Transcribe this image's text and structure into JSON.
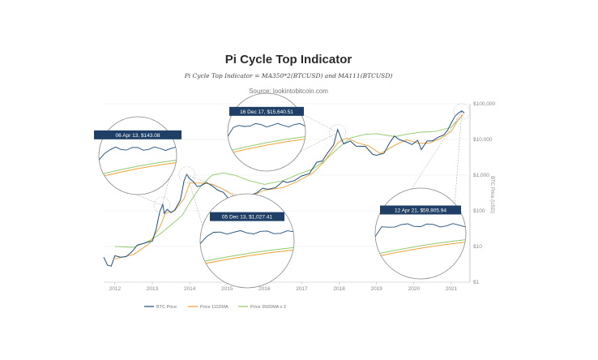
{
  "chart_data": {
    "type": "line",
    "title": "Pi Cycle Top Indicator",
    "subtitle": "Pi Cycle Top Indicator = MA350*2(BTCUSD) and MA111(BTCUSD)",
    "source": "Source: lookintobitcoin.com",
    "ylabel": "BTC Price (USD)",
    "y_scale": "log",
    "ylim": [
      1,
      100000
    ],
    "xlim": [
      2011.7,
      2021.5
    ],
    "x_ticks": [
      2012,
      2013,
      2014,
      2015,
      2016,
      2017,
      2018,
      2019,
      2020,
      2021
    ],
    "x_tick_labels": [
      "2012",
      "2013",
      "2014",
      "2015",
      "2016",
      "2017",
      "2018",
      "2019",
      "2020",
      "2021"
    ],
    "y_ticks": [
      1,
      10,
      100,
      1000,
      10000,
      100000
    ],
    "y_tick_labels": [
      "$1",
      "$10",
      "$100",
      "$1,000",
      "$10,000",
      "$100,000"
    ],
    "legend": {
      "position": "bottom"
    },
    "grid": true,
    "series": [
      {
        "name": "BTC Price",
        "color": "#1f4e79",
        "points": [
          [
            2011.7,
            5.0
          ],
          [
            2011.8,
            3.0
          ],
          [
            2011.9,
            2.8
          ],
          [
            2012.0,
            5.5
          ],
          [
            2012.15,
            5.0
          ],
          [
            2012.3,
            5.2
          ],
          [
            2012.45,
            7.0
          ],
          [
            2012.6,
            11.0
          ],
          [
            2012.75,
            12.0
          ],
          [
            2012.9,
            13.5
          ],
          [
            2013.0,
            14.0
          ],
          [
            2013.1,
            30.0
          ],
          [
            2013.2,
            95.0
          ],
          [
            2013.28,
            150.0
          ],
          [
            2013.32,
            85.0
          ],
          [
            2013.4,
            110.0
          ],
          [
            2013.5,
            88.0
          ],
          [
            2013.6,
            105.0
          ],
          [
            2013.75,
            200.0
          ],
          [
            2013.85,
            700.0
          ],
          [
            2013.92,
            1050.0
          ],
          [
            2014.0,
            800.0
          ],
          [
            2014.1,
            650.0
          ],
          [
            2014.2,
            480.0
          ],
          [
            2014.3,
            500.0
          ],
          [
            2014.45,
            620.0
          ],
          [
            2014.6,
            500.0
          ],
          [
            2014.75,
            380.0
          ],
          [
            2014.9,
            330.0
          ],
          [
            2015.04,
            220.0
          ],
          [
            2015.2,
            250.0
          ],
          [
            2015.4,
            235.0
          ],
          [
            2015.6,
            270.0
          ],
          [
            2015.8,
            320.0
          ],
          [
            2015.95,
            430.0
          ],
          [
            2016.1,
            400.0
          ],
          [
            2016.3,
            450.0
          ],
          [
            2016.5,
            680.0
          ],
          [
            2016.6,
            620.0
          ],
          [
            2016.8,
            700.0
          ],
          [
            2017.0,
            950.0
          ],
          [
            2017.2,
            1100.0
          ],
          [
            2017.4,
            2300.0
          ],
          [
            2017.55,
            2500.0
          ],
          [
            2017.7,
            4300.0
          ],
          [
            2017.85,
            7000.0
          ],
          [
            2017.96,
            19000.0
          ],
          [
            2018.05,
            11000.0
          ],
          [
            2018.12,
            7500.0
          ],
          [
            2018.3,
            9000.0
          ],
          [
            2018.45,
            6500.0
          ],
          [
            2018.7,
            6400.0
          ],
          [
            2018.9,
            3800.0
          ],
          [
            2019.0,
            3600.0
          ],
          [
            2019.2,
            4100.0
          ],
          [
            2019.35,
            8000.0
          ],
          [
            2019.48,
            12500.0
          ],
          [
            2019.6,
            10000.0
          ],
          [
            2019.8,
            8500.0
          ],
          [
            2019.95,
            7200.0
          ],
          [
            2020.1,
            9500.0
          ],
          [
            2020.2,
            5200.0
          ],
          [
            2020.35,
            9000.0
          ],
          [
            2020.5,
            9200.0
          ],
          [
            2020.65,
            11500.0
          ],
          [
            2020.8,
            13500.0
          ],
          [
            2020.9,
            18000.0
          ],
          [
            2021.0,
            29000.0
          ],
          [
            2021.1,
            45000.0
          ],
          [
            2021.2,
            56000.0
          ],
          [
            2021.28,
            63000.0
          ],
          [
            2021.35,
            55000.0
          ]
        ]
      },
      {
        "name": "Price 111DMA",
        "color": "#f0a030",
        "points": [
          [
            2012.0,
            4.5
          ],
          [
            2012.5,
            6.0
          ],
          [
            2012.9,
            11.5
          ],
          [
            2013.2,
            35.0
          ],
          [
            2013.35,
            85.0
          ],
          [
            2013.6,
            100.0
          ],
          [
            2013.85,
            220.0
          ],
          [
            2014.0,
            600.0
          ],
          [
            2014.3,
            600.0
          ],
          [
            2014.6,
            560.0
          ],
          [
            2014.9,
            400.0
          ],
          [
            2015.2,
            260.0
          ],
          [
            2015.6,
            245.0
          ],
          [
            2016.0,
            380.0
          ],
          [
            2016.5,
            450.0
          ],
          [
            2016.9,
            680.0
          ],
          [
            2017.3,
            1150.0
          ],
          [
            2017.6,
            2400.0
          ],
          [
            2017.96,
            8000.0
          ],
          [
            2018.2,
            11000.0
          ],
          [
            2018.5,
            8000.0
          ],
          [
            2018.8,
            6500.0
          ],
          [
            2019.1,
            4000.0
          ],
          [
            2019.5,
            7000.0
          ],
          [
            2019.8,
            9800.0
          ],
          [
            2020.1,
            8000.0
          ],
          [
            2020.4,
            7800.0
          ],
          [
            2020.7,
            10500.0
          ],
          [
            2021.0,
            17000.0
          ],
          [
            2021.2,
            38000.0
          ],
          [
            2021.32,
            50000.0
          ]
        ]
      },
      {
        "name": "Price 350DMA x 2",
        "color": "#8fc96a",
        "points": [
          [
            2012.0,
            10.0
          ],
          [
            2012.5,
            9.5
          ],
          [
            2012.9,
            14.0
          ],
          [
            2013.2,
            22.0
          ],
          [
            2013.5,
            40.0
          ],
          [
            2013.8,
            75.0
          ],
          [
            2014.0,
            170.0
          ],
          [
            2014.3,
            500.0
          ],
          [
            2014.6,
            1000.0
          ],
          [
            2014.9,
            1150.0
          ],
          [
            2015.2,
            1000.0
          ],
          [
            2015.6,
            700.0
          ],
          [
            2016.0,
            550.0
          ],
          [
            2016.5,
            700.0
          ],
          [
            2016.9,
            1050.0
          ],
          [
            2017.3,
            1500.0
          ],
          [
            2017.6,
            2500.0
          ],
          [
            2017.96,
            5500.0
          ],
          [
            2018.3,
            11000.0
          ],
          [
            2018.7,
            14000.0
          ],
          [
            2019.0,
            14500.0
          ],
          [
            2019.5,
            12000.0
          ],
          [
            2019.8,
            14000.0
          ],
          [
            2020.2,
            16000.0
          ],
          [
            2020.6,
            17000.0
          ],
          [
            2021.0,
            22000.0
          ],
          [
            2021.32,
            50000.0
          ]
        ]
      }
    ],
    "callouts": [
      {
        "label": "06 Apr 13, $143.08",
        "x": 2013.26,
        "y": 143.08
      },
      {
        "label": "05 Dec 13, $1,027.41",
        "x": 2013.93,
        "y": 1027.41
      },
      {
        "label": "16 Dec 17, $15,640.51",
        "x": 2017.96,
        "y": 15640.51
      },
      {
        "label": "12 Apr 21, $59,905.94",
        "x": 2021.28,
        "y": 59905.94
      }
    ]
  }
}
